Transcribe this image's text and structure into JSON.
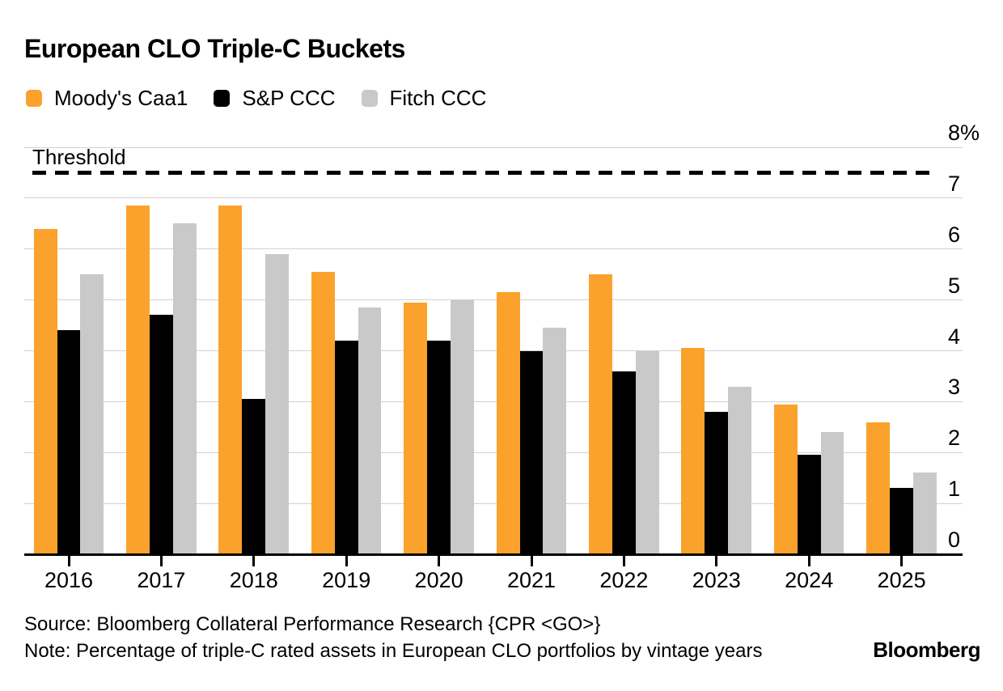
{
  "title": "European CLO Triple-C Buckets",
  "legend": {
    "items": [
      {
        "label": "Moody's Caa1",
        "color": "#FBA22D"
      },
      {
        "label": "S&P CCC",
        "color": "#000000"
      },
      {
        "label": "Fitch CCC",
        "color": "#C9C9C9"
      }
    ]
  },
  "chart_data": {
    "type": "bar",
    "categories": [
      "2016",
      "2017",
      "2018",
      "2019",
      "2020",
      "2021",
      "2022",
      "2023",
      "2024",
      "2025"
    ],
    "series": [
      {
        "name": "Moody's Caa1",
        "color": "#FBA22D",
        "values": [
          6.4,
          6.85,
          6.85,
          5.55,
          4.95,
          5.15,
          5.5,
          4.05,
          2.95,
          2.6
        ]
      },
      {
        "name": "S&P CCC",
        "color": "#000000",
        "values": [
          4.4,
          4.7,
          3.05,
          4.2,
          4.2,
          4.0,
          3.6,
          2.8,
          1.95,
          1.3
        ]
      },
      {
        "name": "Fitch CCC",
        "color": "#C9C9C9",
        "values": [
          5.5,
          6.5,
          5.9,
          4.85,
          5.0,
          4.45,
          4.0,
          3.3,
          2.4,
          1.6
        ]
      }
    ],
    "threshold_value": 7.5,
    "threshold_label": "Threshold",
    "ylim": [
      0,
      8
    ],
    "yticks": [
      {
        "value": 8,
        "label": "8%"
      },
      {
        "value": 7,
        "label": "7"
      },
      {
        "value": 6,
        "label": "6"
      },
      {
        "value": 5,
        "label": "5"
      },
      {
        "value": 4,
        "label": "4"
      },
      {
        "value": 3,
        "label": "3"
      },
      {
        "value": 2,
        "label": "2"
      },
      {
        "value": 1,
        "label": "1"
      },
      {
        "value": 0,
        "label": "0"
      }
    ],
    "grid": true,
    "legend_position": "top-left",
    "y_axis_side": "right"
  },
  "colors": {
    "grid": "#D2D2D2",
    "axis": "#000000",
    "threshold": "#000000",
    "background": "#FFFFFF"
  },
  "footer": {
    "source": "Source: Bloomberg Collateral Performance Research {CPR <GO>}",
    "note": "Note: Percentage of triple-C rated assets in European CLO portfolios by vintage years",
    "brand": "Bloomberg"
  }
}
